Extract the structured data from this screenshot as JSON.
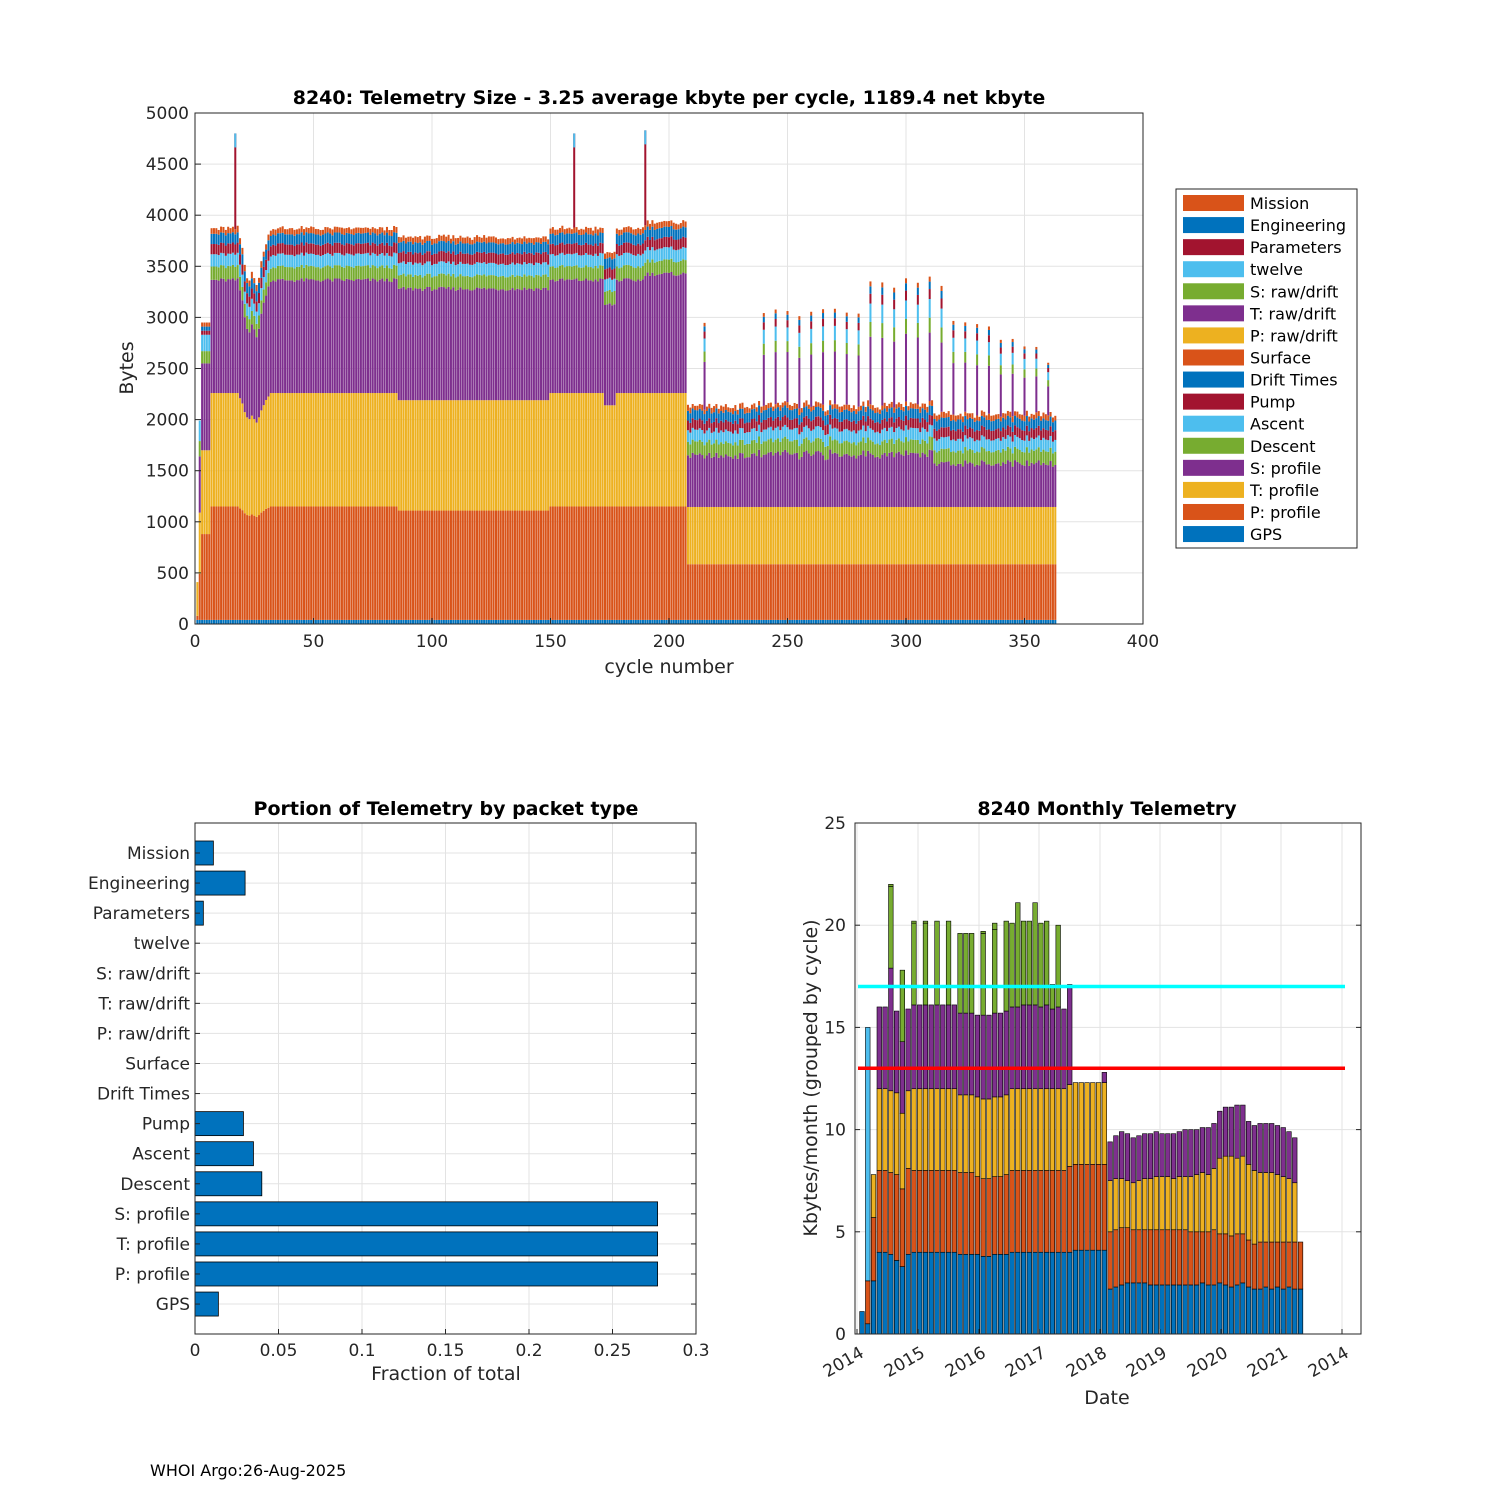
{
  "colors": {
    "mission": "#D95319",
    "engineering": "#0072BD",
    "parameters": "#A2142F",
    "twelve": "#4DBEEE",
    "s_raw": "#77AC30",
    "t_raw": "#7E2F8E",
    "p_raw": "#EDB120",
    "surface": "#D95319",
    "drift": "#0072BD",
    "pump": "#A2142F",
    "ascent": "#4DBEEE",
    "descent": "#77AC30",
    "s_profile": "#7E2F8E",
    "t_profile": "#EDB120",
    "p_profile": "#D95319",
    "gps": "#0072BD",
    "cyan_line": "#00FFFF",
    "red_line": "#FF0000",
    "bar": "#0072BD"
  },
  "chart_data": [
    {
      "type": "bar",
      "stacked": true,
      "title": "8240: Telemetry Size - 3.25 average kbyte per cycle, 1189.4 net kbyte",
      "xlabel": "cycle number",
      "ylabel": "Bytes",
      "xlim": [
        0,
        400
      ],
      "ylim": [
        0,
        5000
      ],
      "xticks": [
        0,
        50,
        100,
        150,
        200,
        250,
        300,
        350,
        400
      ],
      "yticks": [
        0,
        500,
        1000,
        1500,
        2000,
        2500,
        3000,
        3500,
        4000,
        4500,
        5000
      ],
      "grid": true,
      "legend_position": "right",
      "legend": [
        "Mission",
        "Engineering",
        "Parameters",
        "twelve",
        "S: raw/drift",
        "T: raw/drift",
        "P: raw/drift",
        "Surface",
        "Drift Times",
        "Pump",
        "Ascent",
        "Descent",
        "S: profile",
        "T: profile",
        "P: profile",
        "GPS"
      ],
      "cycles": "1-363",
      "segments": [
        {
          "name": "Cycles 3-207",
          "cycle_range": [
            3,
            207
          ],
          "typical_totals": {
            "GPS": 40,
            "P: profile": 1150,
            "T: profile": 1100,
            "S: profile": 1100,
            "Descent": 130,
            "Ascent": 120,
            "Pump": 100,
            "Engineering": 100,
            "Mission": 40
          },
          "typical_total_bytes": 3850
        },
        {
          "name": "Cycles 208-363",
          "cycle_range": [
            208,
            363
          ],
          "typical_totals": {
            "GPS": 40,
            "P: profile": 560,
            "T: profile": 560,
            "S: profile": 560,
            "Descent": 130,
            "Ascent": 120,
            "Pump": 100,
            "Engineering": 100,
            "Mission": 40
          },
          "typical_total_bytes": 2200
        }
      ],
      "spikes": [
        {
          "cycle": 17,
          "total": 4800
        },
        {
          "cycle": 160,
          "total": 4800
        },
        {
          "cycle": 190,
          "total": 4830
        }
      ]
    },
    {
      "type": "bar",
      "orientation": "horizontal",
      "title": "Portion of Telemetry by packet type",
      "xlabel": "Fraction of total",
      "xlim": [
        0,
        0.3
      ],
      "xticks": [
        0,
        0.05,
        0.1,
        0.15,
        0.2,
        0.25,
        0.3
      ],
      "xtick_labels": [
        "0",
        "0.05",
        "0.1",
        "0.15",
        "0.2",
        "0.25",
        "0.3"
      ],
      "grid": true,
      "categories": [
        "Mission",
        "Engineering",
        "Parameters",
        "twelve",
        "S: raw/drift",
        "T: raw/drift",
        "P: raw/drift",
        "Surface",
        "Drift Times",
        "Pump",
        "Ascent",
        "Descent",
        "S: profile",
        "T: profile",
        "P: profile",
        "GPS"
      ],
      "values": [
        0.011,
        0.03,
        0.005,
        0,
        0,
        0,
        0,
        0,
        0,
        0.029,
        0.035,
        0.04,
        0.277,
        0.277,
        0.277,
        0.014
      ]
    },
    {
      "type": "bar",
      "stacked": true,
      "title": "8240 Monthly Telemetry",
      "xlabel": "Date",
      "ylabel": "Kbytes/month (grouped by cycle)",
      "ylim": [
        0,
        25
      ],
      "yticks": [
        0,
        5,
        10,
        15,
        20,
        25
      ],
      "xtick_labels": [
        "2014",
        "2015",
        "2016",
        "2017",
        "2018",
        "2019",
        "2020",
        "2021",
        "2014"
      ],
      "grid": true,
      "hlines": [
        {
          "y": 17,
          "color": "cyan"
        },
        {
          "y": 13,
          "color": "red"
        }
      ],
      "monthly_layer_colors": [
        "#0072BD",
        "#D95319",
        "#EDB120",
        "#7E2F8E",
        "#77AC30",
        "#4DBEEE"
      ],
      "months": [
        [
          1.1
        ],
        [
          0.5,
          2.1,
          0,
          0,
          0,
          12.4
        ],
        [
          2.6,
          3.1,
          2.1,
          0,
          0,
          0
        ],
        [
          4.0,
          4.0,
          4.0,
          4.0
        ],
        [
          4.0,
          4.0,
          4.0,
          4.0
        ],
        [
          3.9,
          4.0,
          4.0,
          6.0,
          4.0
        ],
        [
          3.6,
          4.2,
          4.0,
          4.0
        ],
        [
          3.3,
          3.8,
          3.7,
          3.5,
          3.5
        ],
        [
          3.9,
          4.2,
          3.8,
          4.0
        ],
        [
          4.0,
          4.0,
          4.0,
          4.1,
          4.0
        ],
        [
          4.0,
          4.0,
          4.0,
          4.1
        ],
        [
          4.0,
          4.0,
          4.0,
          4.1,
          4.0
        ],
        [
          4.0,
          4.0,
          4.0,
          4.1
        ],
        [
          4.0,
          4.0,
          4.0,
          4.1,
          4.1
        ],
        [
          4.0,
          4.0,
          4.0,
          4.1
        ],
        [
          4.0,
          4.0,
          4.0,
          4.1,
          4.1
        ],
        [
          4.0,
          4.0,
          4.0,
          4.1
        ],
        [
          3.9,
          4.0,
          3.8,
          4.0
        ],
        [
          3.9,
          4.0,
          3.8,
          4.0,
          3.9
        ],
        [
          3.9,
          4.0,
          3.8,
          4.0
        ],
        [
          3.9,
          3.8,
          3.9,
          4.0
        ],
        [
          3.8,
          3.8,
          3.9,
          4.1,
          4.0
        ],
        [
          3.8,
          3.8,
          3.9,
          4.1
        ],
        [
          3.9,
          3.8,
          3.9,
          4.1,
          4.1
        ],
        [
          3.9,
          3.8,
          3.9,
          4.1
        ],
        [
          3.9,
          3.9,
          3.9,
          4.1
        ],
        [
          4.0,
          4.0,
          4.0,
          4.0,
          4.1
        ],
        [
          4.0,
          4.0,
          4.0,
          4.0
        ],
        [
          4.0,
          4.0,
          4.0,
          4.1,
          4.1
        ],
        [
          4.0,
          4.0,
          4.0,
          4.1
        ],
        [
          4.0,
          4.0,
          4.0,
          4.1,
          5.0
        ],
        [
          4.0,
          4.0,
          4.0,
          4.0
        ],
        [
          4.0,
          4.0,
          4.0,
          4.1,
          4.1
        ],
        [
          4.0,
          4.0,
          4.0,
          3.9
        ],
        [
          4.0,
          4.0,
          4.0,
          4.0,
          4.0
        ],
        [
          4.0,
          4.0,
          4.0,
          3.9
        ],
        [
          4.0,
          4.2,
          4.0,
          4.9
        ],
        [
          4.1,
          4.2,
          4.0,
          0
        ],
        [
          4.1,
          4.2,
          4.0,
          0
        ],
        [
          4.1,
          4.2,
          4.0,
          0
        ],
        [
          4.1,
          4.2,
          4.0,
          0
        ],
        [
          4.1,
          4.2,
          4.0,
          0
        ],
        [
          4.1,
          4.2,
          4.0,
          0.5
        ],
        [
          2.2,
          2.8,
          2.5,
          1.9
        ],
        [
          2.3,
          2.8,
          2.5,
          2.1
        ],
        [
          2.4,
          2.8,
          2.4,
          2.3
        ],
        [
          2.5,
          2.7,
          2.3,
          2.3
        ],
        [
          2.5,
          2.6,
          2.3,
          2.2
        ],
        [
          2.5,
          2.6,
          2.4,
          2.2
        ],
        [
          2.5,
          2.6,
          2.5,
          2.2
        ],
        [
          2.4,
          2.7,
          2.5,
          2.2
        ],
        [
          2.4,
          2.7,
          2.6,
          2.2
        ],
        [
          2.4,
          2.7,
          2.6,
          2.1
        ],
        [
          2.4,
          2.7,
          2.6,
          2.1
        ],
        [
          2.4,
          2.7,
          2.5,
          2.2
        ],
        [
          2.4,
          2.7,
          2.6,
          2.2
        ],
        [
          2.4,
          2.7,
          2.6,
          2.3
        ],
        [
          2.4,
          2.6,
          2.7,
          2.3
        ],
        [
          2.4,
          2.6,
          2.8,
          2.2
        ],
        [
          2.5,
          2.5,
          2.9,
          2.2
        ],
        [
          2.4,
          2.6,
          2.8,
          2.3
        ],
        [
          2.4,
          2.7,
          3.0,
          2.2
        ],
        [
          2.5,
          2.4,
          3.7,
          2.3
        ],
        [
          2.4,
          2.5,
          3.8,
          2.4
        ],
        [
          2.3,
          2.5,
          3.9,
          2.4
        ],
        [
          2.4,
          2.5,
          3.7,
          2.6
        ],
        [
          2.5,
          2.4,
          3.8,
          2.5
        ],
        [
          2.3,
          2.3,
          3.7,
          2.1
        ],
        [
          2.2,
          2.2,
          3.6,
          2.2
        ],
        [
          2.2,
          2.3,
          3.4,
          2.4
        ],
        [
          2.3,
          2.2,
          3.4,
          2.4
        ],
        [
          2.2,
          2.3,
          3.4,
          2.4
        ],
        [
          2.3,
          2.2,
          3.3,
          2.4
        ],
        [
          2.2,
          2.3,
          3.2,
          2.4
        ],
        [
          2.3,
          2.2,
          3.1,
          2.3
        ],
        [
          2.2,
          2.3,
          2.9,
          2.2
        ],
        [
          2.2,
          2.3,
          0,
          0
        ]
      ]
    }
  ],
  "footer": "WHOI Argo:26-Aug-2025"
}
